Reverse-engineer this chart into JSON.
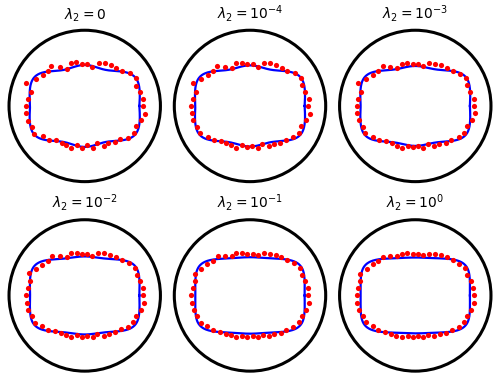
{
  "titles": [
    "$\\lambda_2=0$",
    "$\\lambda_2=10^{-4}$",
    "$\\lambda_2=10^{-3}$",
    "$\\lambda_2=10^{-2}$",
    "$\\lambda_2=10^{-1}$",
    "$\\lambda_2=10^{0}$"
  ],
  "outer_circle_color": "#000000",
  "outer_circle_lw": 2.2,
  "blue_lw": 1.6,
  "blue_color": "#0000FF",
  "red_color": "#FF0000",
  "red_ms": 14,
  "background": "#FFFFFF",
  "title_fontsize": 10,
  "n_dots": 50
}
